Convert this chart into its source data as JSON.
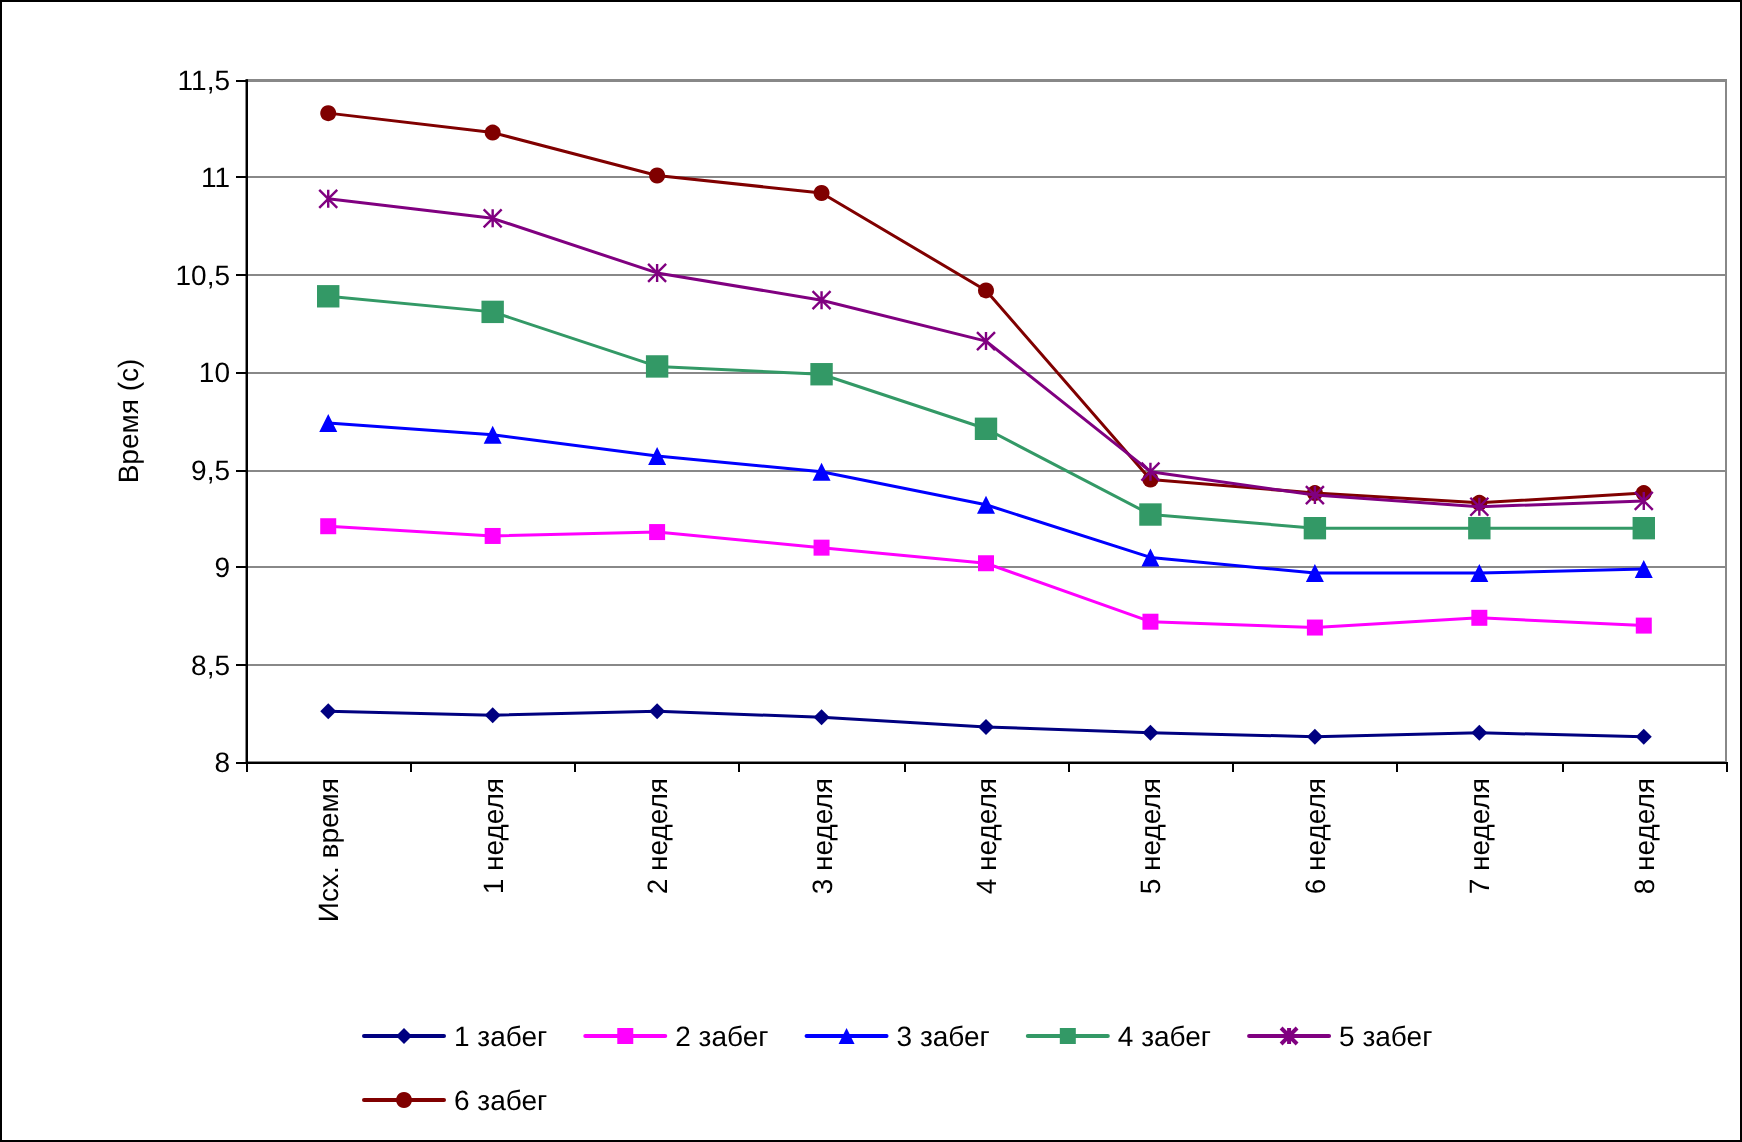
{
  "chart_data": {
    "type": "line",
    "ylabel": "Время (с)",
    "categories": [
      "Исх. время",
      "1 неделя",
      "2 неделя",
      "3 неделя",
      "4 неделя",
      "5 неделя",
      "6 неделя",
      "7 неделя",
      "8 неделя"
    ],
    "series": [
      {
        "name": "1 забег",
        "color": "#000080",
        "marker": "diamond",
        "values": [
          8.26,
          8.24,
          8.26,
          8.23,
          8.18,
          8.15,
          8.13,
          8.15,
          8.13
        ]
      },
      {
        "name": "2 забег",
        "color": "#ff00ff",
        "marker": "square",
        "values": [
          9.21,
          9.16,
          9.18,
          9.1,
          9.02,
          8.72,
          8.69,
          8.74,
          8.7
        ]
      },
      {
        "name": "3 забег",
        "color": "#0000ff",
        "marker": "triangle",
        "values": [
          9.74,
          9.68,
          9.57,
          9.49,
          9.32,
          9.05,
          8.97,
          8.97,
          8.99
        ]
      },
      {
        "name": "4 забег",
        "color": "#339966",
        "marker": "square",
        "values": [
          10.39,
          10.31,
          10.03,
          9.99,
          9.71,
          9.27,
          9.2,
          9.2,
          9.2
        ]
      },
      {
        "name": "5 забег",
        "color": "#800080",
        "marker": "cross",
        "values": [
          10.89,
          10.79,
          10.51,
          10.37,
          10.16,
          9.49,
          9.37,
          9.31,
          9.34
        ]
      },
      {
        "name": "6 забег",
        "color": "#800000",
        "marker": "circle",
        "values": [
          11.33,
          11.23,
          11.01,
          10.92,
          10.42,
          9.45,
          9.38,
          9.33,
          9.38
        ]
      }
    ],
    "ylim": [
      8,
      11.5
    ],
    "yticks": [
      8,
      {
        "value": 8.5,
        "label": "8,5"
      },
      9,
      {
        "value": 9.5,
        "label": "9,5"
      },
      10,
      {
        "value": 10.5,
        "label": "10,5"
      },
      11,
      {
        "value": 11.5,
        "label": "11,5"
      }
    ],
    "grid": "y",
    "legend": "bottom",
    "line_style": "solid"
  }
}
